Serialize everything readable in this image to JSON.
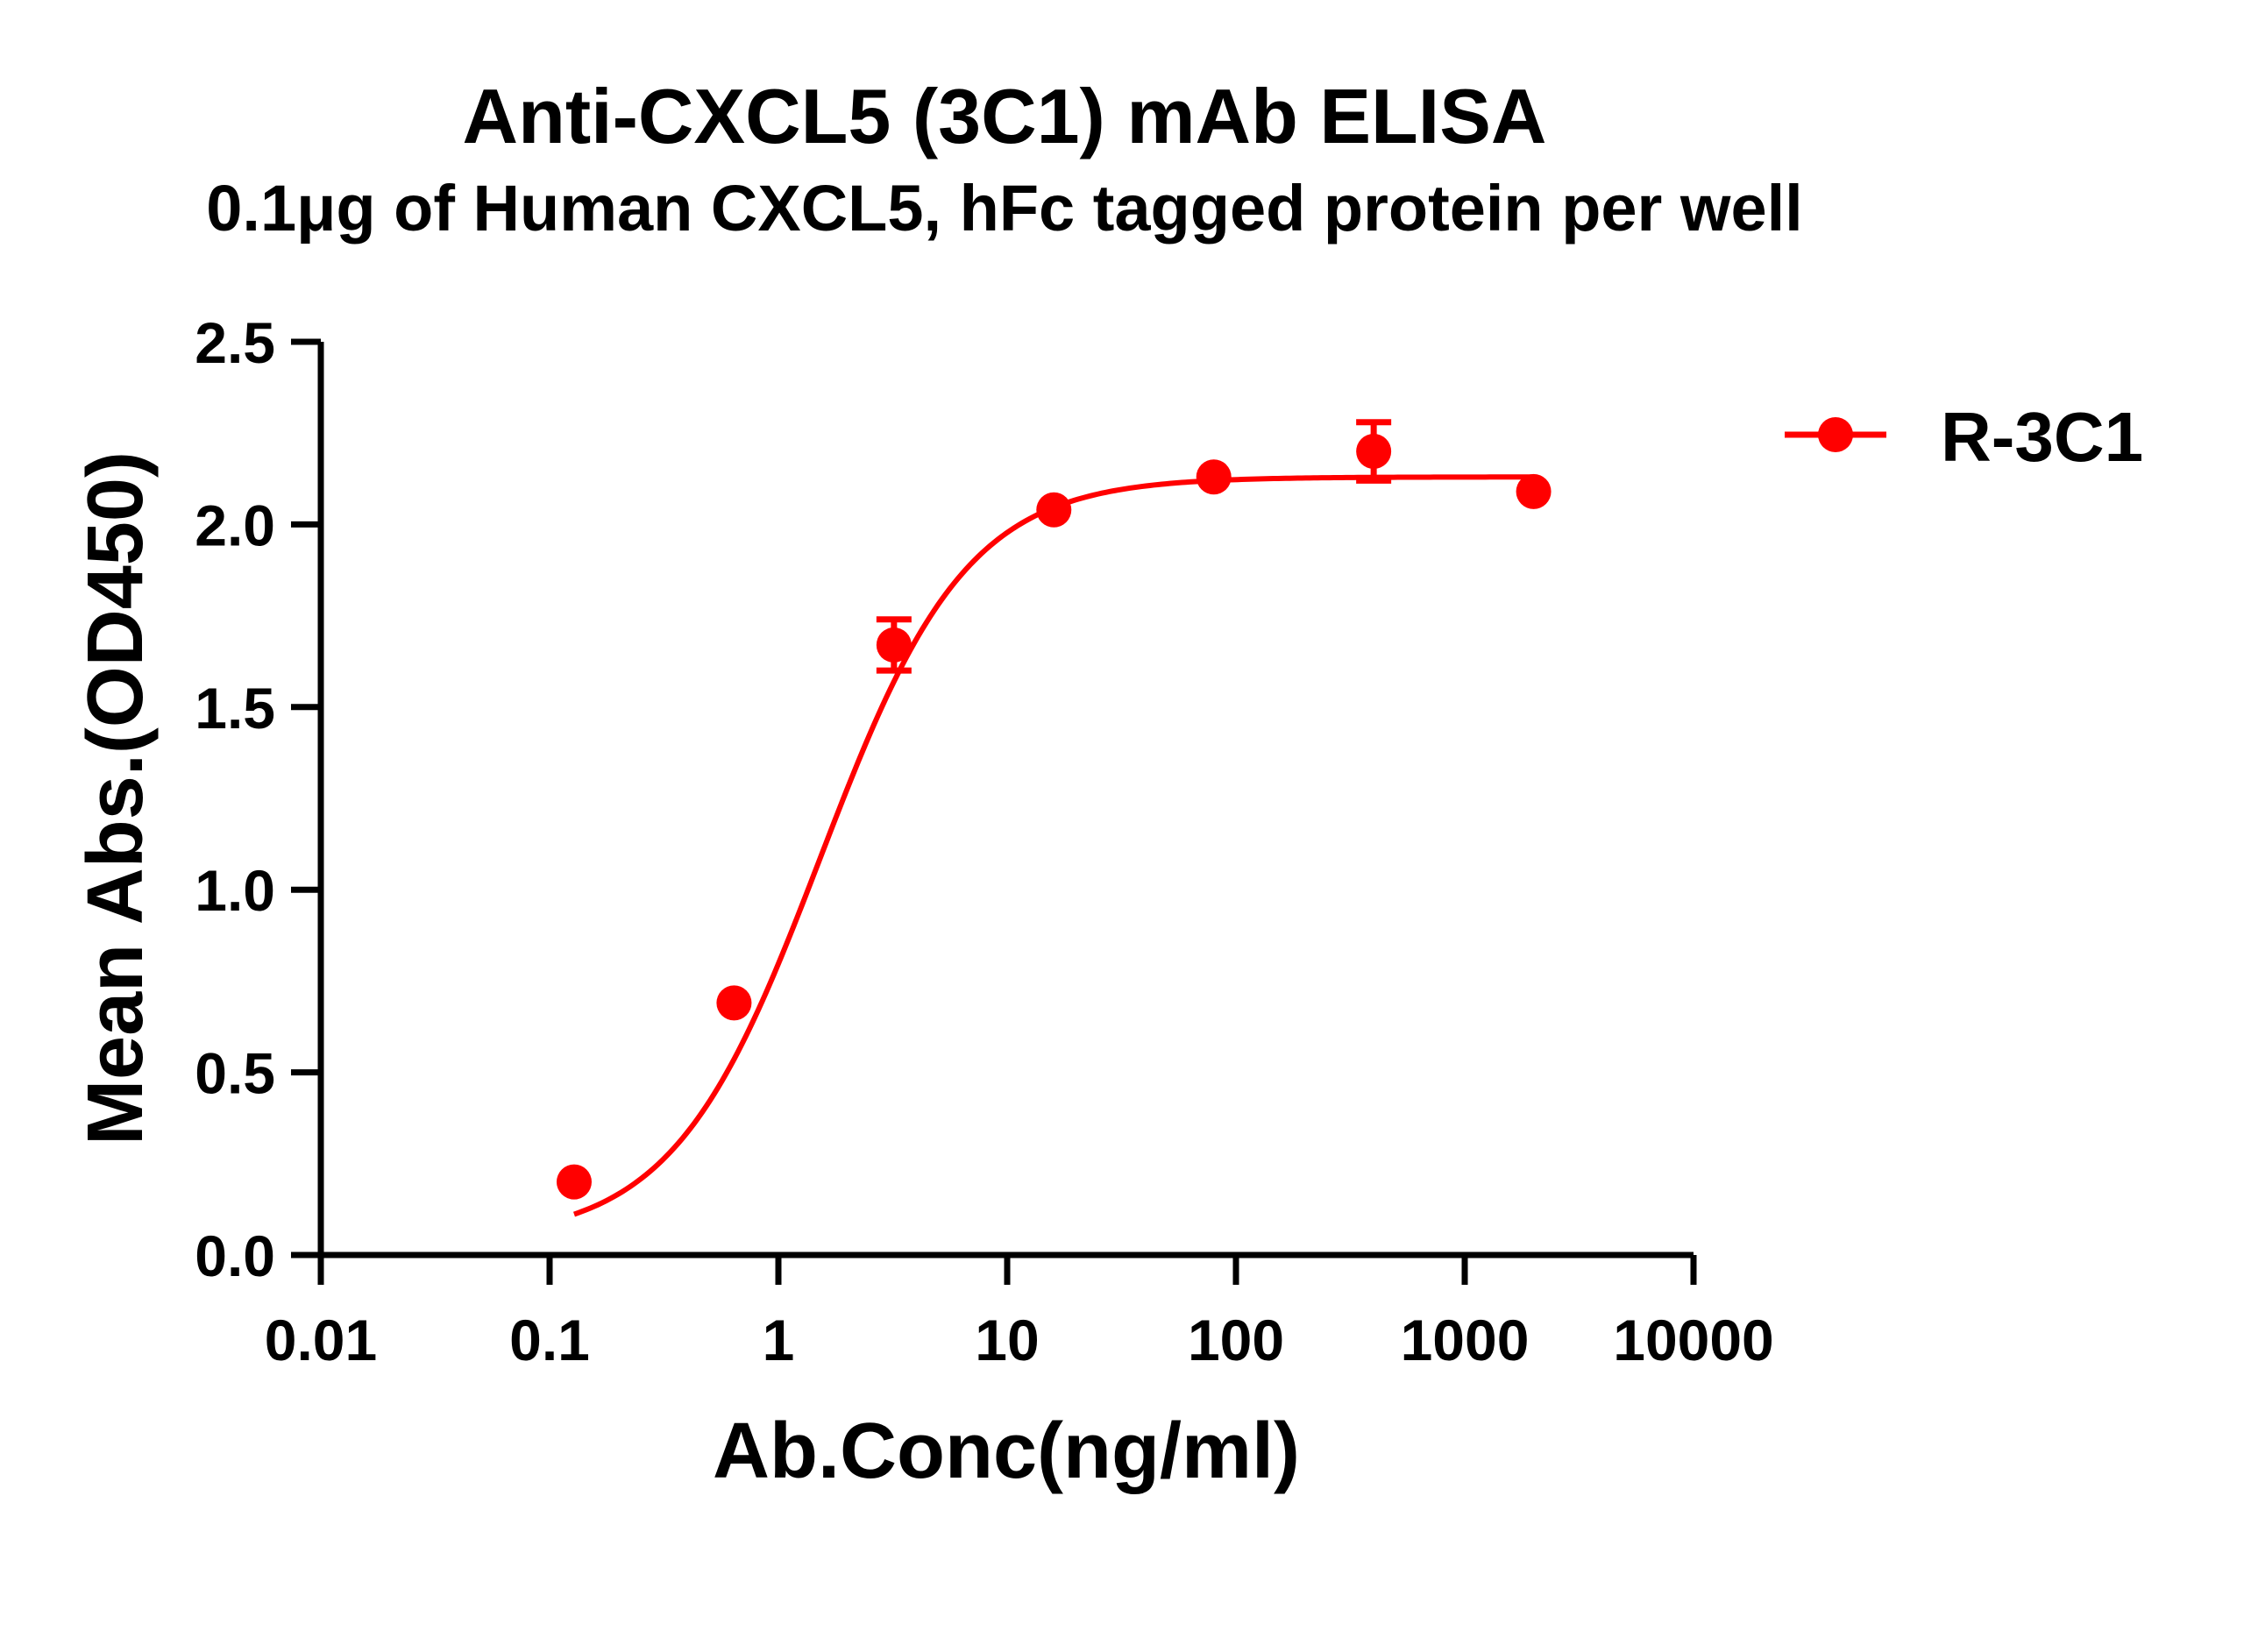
{
  "chart_data": {
    "type": "scatter",
    "title": "Anti-CXCL5 (3C1) mAb ELISA",
    "subtitle": "0.1μg of Human CXCL5, hFc tagged protein per well",
    "xlabel": "Ab.Conc(ng/ml)",
    "ylabel": "Mean Abs.(OD450)",
    "xscale": "log",
    "xlim": [
      0.01,
      10000
    ],
    "ylim": [
      0,
      2.5
    ],
    "xticks": [
      0.01,
      0.1,
      1,
      10,
      100,
      1000,
      10000
    ],
    "xtick_labels": [
      "0.01",
      "0.1",
      "1",
      "10",
      "100",
      "1000",
      "10000"
    ],
    "yticks": [
      0,
      0.5,
      1,
      1.5,
      2,
      2.5
    ],
    "ytick_labels": [
      "0.0",
      "0.5",
      "1.0",
      "1.5",
      "2.0",
      "2.5"
    ],
    "grid": false,
    "legend": "right",
    "series": [
      {
        "name": "R-3C1",
        "color": "#ff0000",
        "x": [
          0.128,
          0.64,
          3.2,
          16,
          80,
          400,
          2000
        ],
        "y": [
          0.2,
          0.69,
          1.67,
          2.04,
          2.13,
          2.2,
          2.09
        ],
        "error": [
          0,
          0,
          0.07,
          0,
          0,
          0.08,
          0
        ],
        "fit": "4PL sigmoidal",
        "fit_params": {
          "bottom": 0.04,
          "top": 2.13,
          "ec50": 1.52,
          "hill": 1.35
        }
      }
    ]
  }
}
